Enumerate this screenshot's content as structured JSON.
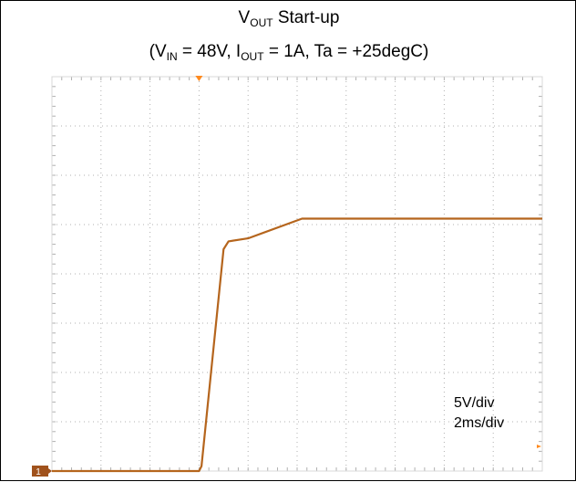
{
  "title": {
    "line1": {
      "main": "V",
      "sub": "OUT",
      "rest": " Start-up"
    },
    "line2": [
      {
        "text": "(V"
      },
      {
        "sub": "IN"
      },
      {
        "text": " = 48V, I"
      },
      {
        "sub": "OUT"
      },
      {
        "text": " = 1A, Ta = +25degC)"
      }
    ]
  },
  "colors": {
    "trace": "#b5651d",
    "grid": "#b0b0b0",
    "marker": "#ff8a1e",
    "channel_badge": "#a0521c"
  },
  "chart_data": {
    "type": "line",
    "x_unit": "ms",
    "y_unit": "V",
    "x_divisions": 10,
    "y_divisions": 8,
    "xlim": [
      0,
      20
    ],
    "ylim": [
      0,
      40
    ],
    "channel_marker_label": "1",
    "trigger_marker_x": 6,
    "scale_labels": [
      "5V/div",
      "2ms/div"
    ],
    "series": [
      {
        "x": [
          0,
          6.0,
          6.1,
          7.0,
          7.2,
          8.0,
          10.2,
          20
        ],
        "y": [
          0,
          0,
          0.5,
          22.5,
          23.3,
          23.6,
          25.6,
          25.6
        ]
      }
    ]
  }
}
